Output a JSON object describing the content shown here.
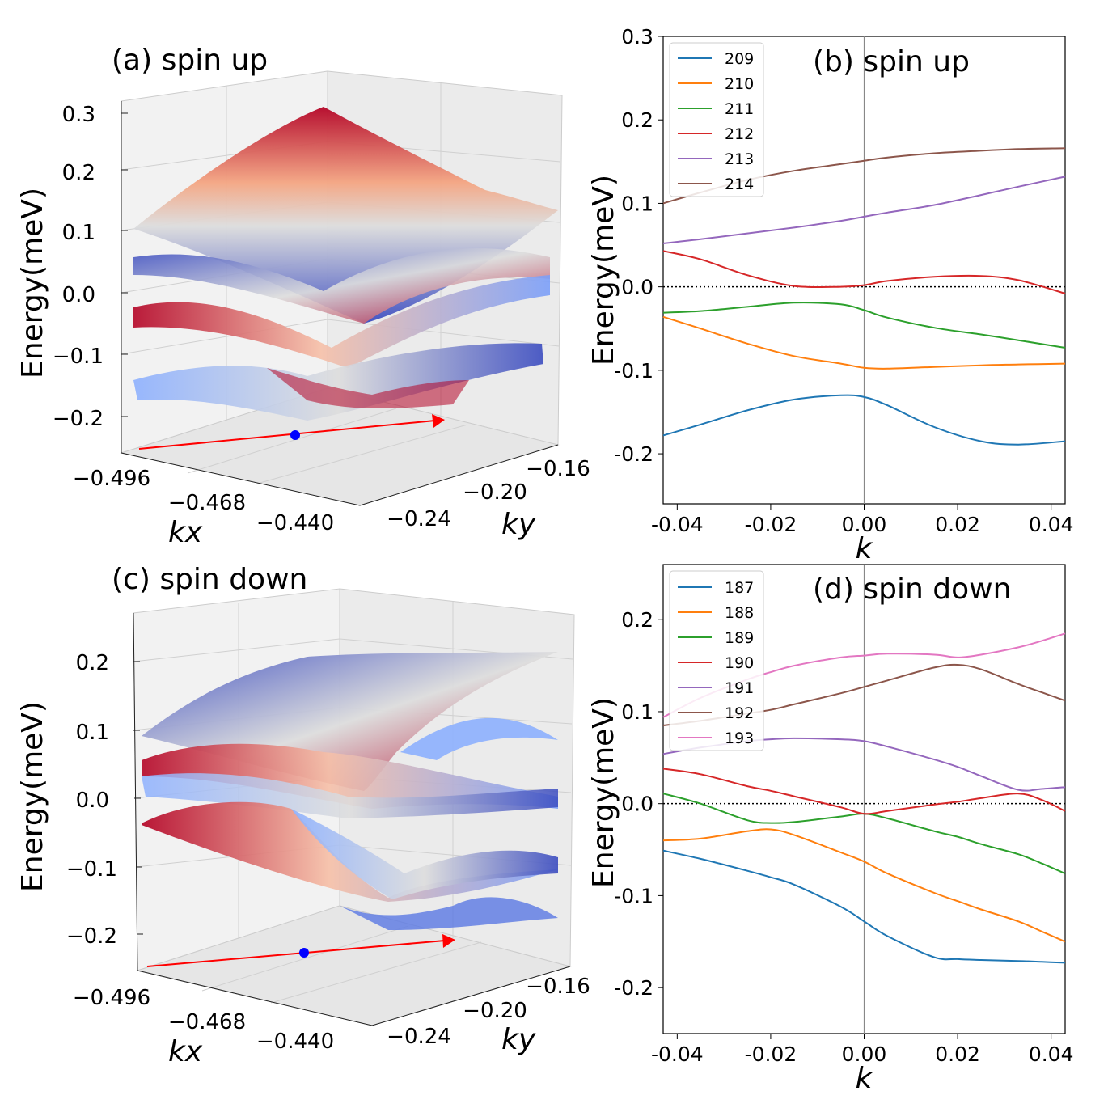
{
  "colors": {
    "c0": "#1f77b4",
    "c1": "#ff7f0e",
    "c2": "#2ca02c",
    "c3": "#d62728",
    "c4": "#9467bd",
    "c5": "#8c564b",
    "c6": "#e377c2",
    "surface_low": "#3b4cc0",
    "surface_mid": "#dddddd",
    "surface_high": "#b40426",
    "arrow": "#ff0000",
    "dot": "#0000ff"
  },
  "chart_data": [
    {
      "panel": "a",
      "type": "surface3d",
      "title": "(a) spin up",
      "zlabel": "Energy(meV)",
      "xlabel": "kx",
      "ylabel": "ky",
      "zticks": [
        "0.3",
        "0.2",
        "0.1",
        "0.0",
        "−0.1",
        "−0.2"
      ],
      "xticks": [
        "−0.496",
        "−0.468",
        "−0.440"
      ],
      "yticks": [
        "−0.24",
        "−0.20",
        "−0.16"
      ]
    },
    {
      "panel": "b",
      "type": "line",
      "title": "(b) spin up",
      "xlabel": "k",
      "ylabel": "Energy(meV)",
      "xlim": [
        -0.043,
        0.043
      ],
      "ylim": [
        -0.26,
        0.3
      ],
      "xticks": [
        "-0.04",
        "-0.02",
        "0.00",
        "0.02",
        "0.04"
      ],
      "yticks": [
        "0.3",
        "0.2",
        "0.1",
        "0.0",
        "-0.1",
        "-0.2"
      ],
      "legend_position": "top-left",
      "x": [
        -0.043,
        -0.035,
        -0.025,
        -0.015,
        -0.005,
        0.0,
        0.005,
        0.015,
        0.025,
        0.033,
        0.043
      ],
      "series": [
        {
          "name": "209",
          "values": [
            -0.178,
            -0.165,
            -0.148,
            -0.135,
            -0.13,
            -0.132,
            -0.142,
            -0.168,
            -0.185,
            -0.189,
            -0.185
          ]
        },
        {
          "name": "210",
          "values": [
            -0.036,
            -0.05,
            -0.068,
            -0.083,
            -0.092,
            -0.097,
            -0.098,
            -0.096,
            -0.094,
            -0.093,
            -0.092
          ]
        },
        {
          "name": "211",
          "values": [
            -0.031,
            -0.029,
            -0.024,
            -0.019,
            -0.021,
            -0.028,
            -0.037,
            -0.049,
            -0.057,
            -0.064,
            -0.073
          ]
        },
        {
          "name": "212",
          "values": [
            0.043,
            0.033,
            0.014,
            0.001,
            0.0,
            0.002,
            0.007,
            0.012,
            0.013,
            0.008,
            -0.008
          ]
        },
        {
          "name": "213",
          "values": [
            0.052,
            0.057,
            0.064,
            0.071,
            0.079,
            0.084,
            0.089,
            0.098,
            0.11,
            0.12,
            0.132
          ]
        },
        {
          "name": "214",
          "values": [
            0.1,
            0.113,
            0.128,
            0.139,
            0.147,
            0.151,
            0.155,
            0.16,
            0.163,
            0.165,
            0.166
          ]
        }
      ],
      "reference_line": {
        "y": 0.0,
        "style": "dotted"
      },
      "vertical_line": {
        "x": 0.0
      }
    },
    {
      "panel": "c",
      "type": "surface3d",
      "title": "(c) spin down",
      "zlabel": "Energy(meV)",
      "xlabel": "kx",
      "ylabel": "ky",
      "zticks": [
        "0.2",
        "0.1",
        "0.0",
        "−0.1",
        "−0.2"
      ],
      "xticks": [
        "−0.496",
        "−0.468",
        "−0.440"
      ],
      "yticks": [
        "−0.24",
        "−0.20",
        "−0.16"
      ]
    },
    {
      "panel": "d",
      "type": "line",
      "title": "(d) spin down",
      "xlabel": "k",
      "ylabel": "Energy(meV)",
      "xlim": [
        -0.043,
        0.043
      ],
      "ylim": [
        -0.25,
        0.26
      ],
      "xticks": [
        "-0.04",
        "-0.02",
        "0.00",
        "0.02",
        "0.04"
      ],
      "yticks": [
        "0.2",
        "0.1",
        "0.0",
        "-0.1",
        "-0.2"
      ],
      "legend_position": "top-left",
      "x": [
        -0.043,
        -0.035,
        -0.025,
        -0.02,
        -0.015,
        -0.005,
        0.0,
        0.005,
        0.015,
        0.02,
        0.025,
        0.033,
        0.038,
        0.043
      ],
      "series": [
        {
          "name": "187",
          "values": [
            -0.051,
            -0.06,
            -0.073,
            -0.08,
            -0.088,
            -0.112,
            -0.128,
            -0.144,
            -0.167,
            -0.169,
            -0.17,
            -0.171,
            -0.172,
            -0.173
          ]
        },
        {
          "name": "188",
          "values": [
            -0.04,
            -0.038,
            -0.03,
            -0.028,
            -0.034,
            -0.053,
            -0.063,
            -0.076,
            -0.097,
            -0.106,
            -0.115,
            -0.128,
            -0.139,
            -0.15
          ]
        },
        {
          "name": "189",
          "values": [
            0.011,
            0.0,
            -0.018,
            -0.021,
            -0.02,
            -0.014,
            -0.011,
            -0.016,
            -0.03,
            -0.036,
            -0.044,
            -0.055,
            -0.065,
            -0.076
          ]
        },
        {
          "name": "190",
          "values": [
            0.038,
            0.032,
            0.019,
            0.014,
            0.008,
            -0.004,
            -0.011,
            -0.008,
            -0.001,
            0.002,
            0.006,
            0.011,
            0.004,
            -0.008
          ]
        },
        {
          "name": "191",
          "values": [
            0.054,
            0.061,
            0.068,
            0.07,
            0.071,
            0.07,
            0.068,
            0.062,
            0.048,
            0.04,
            0.03,
            0.015,
            0.016,
            0.018
          ]
        },
        {
          "name": "192",
          "values": [
            0.085,
            0.09,
            0.098,
            0.102,
            0.108,
            0.12,
            0.127,
            0.134,
            0.148,
            0.151,
            0.146,
            0.13,
            0.121,
            0.112
          ]
        },
        {
          "name": "193",
          "values": [
            0.094,
            0.115,
            0.135,
            0.143,
            0.15,
            0.159,
            0.161,
            0.163,
            0.162,
            0.159,
            0.162,
            0.17,
            0.177,
            0.185
          ]
        }
      ],
      "reference_line": {
        "y": 0.0,
        "style": "dotted"
      },
      "vertical_line": {
        "x": 0.0
      }
    }
  ]
}
